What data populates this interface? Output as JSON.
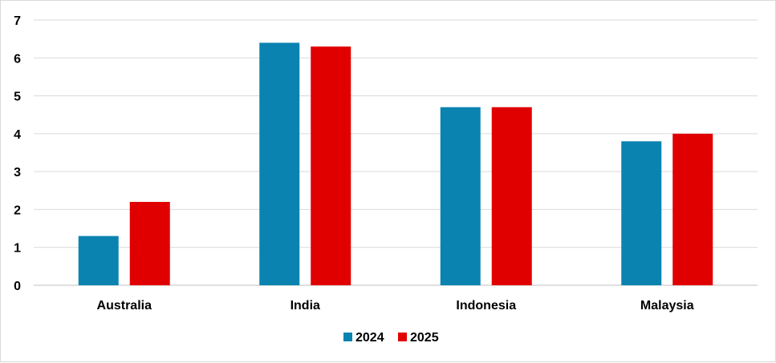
{
  "chart_data": {
    "type": "bar",
    "categories": [
      "Australia",
      "India",
      "Indonesia",
      "Malaysia"
    ],
    "series": [
      {
        "name": "2024",
        "values": [
          1.3,
          6.4,
          4.7,
          3.8
        ],
        "color": "#0a83b0"
      },
      {
        "name": "2025",
        "values": [
          2.2,
          6.3,
          4.7,
          4.0
        ],
        "color": "#e00000"
      }
    ],
    "ylim": [
      0,
      7
    ],
    "yticks": [
      "0",
      "1",
      "2",
      "3",
      "4",
      "5",
      "6",
      "7"
    ],
    "grid": true,
    "legend_position": "bottom",
    "title": "",
    "xlabel": "",
    "ylabel": ""
  }
}
